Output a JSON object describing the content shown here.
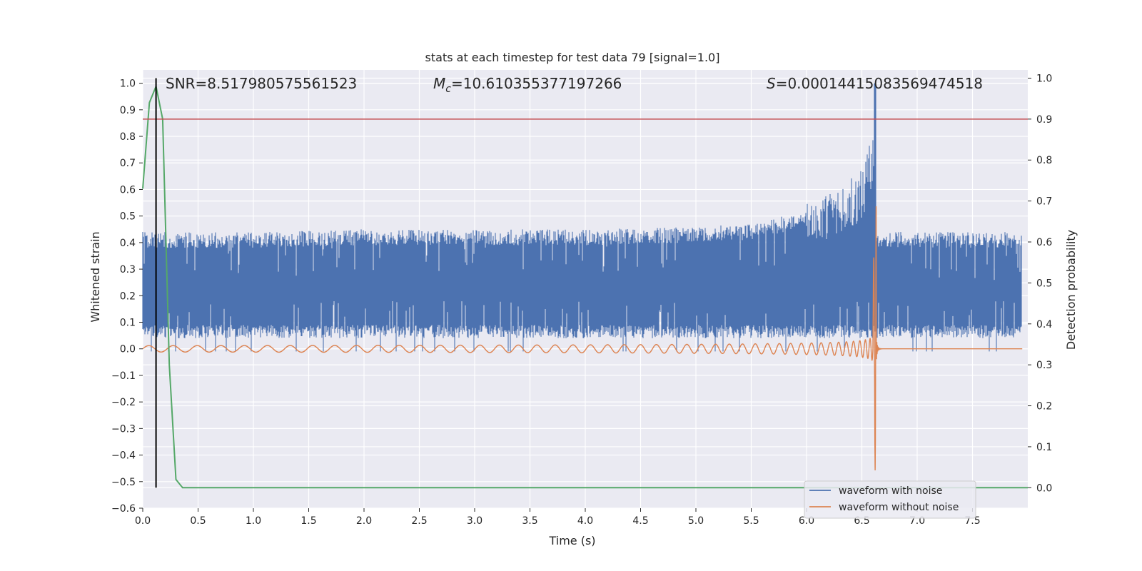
{
  "chart_data": {
    "type": "line",
    "title": "stats at each timestep for test data 79 [signal=1.0]",
    "xlabel": "Time (s)",
    "ylabel_left": "Whitened strain",
    "ylabel_right": "Detection probability",
    "xlim": [
      0.0,
      8.0
    ],
    "ylim_left": [
      -0.6,
      1.05
    ],
    "ylim_right": [
      -0.05,
      1.02
    ],
    "x_ticks": [
      "0.0",
      "0.5",
      "1.0",
      "1.5",
      "2.0",
      "2.5",
      "3.0",
      "3.5",
      "4.0",
      "4.5",
      "5.0",
      "5.5",
      "6.0",
      "6.5",
      "7.0",
      "7.5"
    ],
    "left_ticks": [
      "−0.6",
      "−0.5",
      "−0.4",
      "−0.3",
      "−0.2",
      "−0.1",
      "0.0",
      "0.1",
      "0.2",
      "0.3",
      "0.4",
      "0.5",
      "0.6",
      "0.7",
      "0.8",
      "0.9",
      "1.0"
    ],
    "right_ticks": [
      "0.0",
      "0.1",
      "0.2",
      "0.3",
      "0.4",
      "0.5",
      "0.6",
      "0.7",
      "0.8",
      "0.9",
      "1.0"
    ],
    "grid": true,
    "annotations": {
      "snr": "SNR=8.517980575561523",
      "mc_symbol": "M",
      "mc_sub": "c",
      "mc_value": "=10.610355377197266",
      "s_symbol": "S",
      "s_value": "=0.00014415083569474518"
    },
    "legend": {
      "location": "lower-right",
      "entries": [
        "waveform with noise",
        "waveform without noise"
      ]
    },
    "colors": {
      "noise": "#4c72b0",
      "clean": "#dd8452",
      "probability": "#55a868",
      "threshold": "#c44e52",
      "marker": "#000000",
      "background": "#eaeaf2",
      "grid": "#ffffff"
    },
    "series": [
      {
        "name": "waveform with noise",
        "axis": "left",
        "description_points": {
          "x": [
            0.0,
            1.0,
            2.0,
            3.0,
            4.0,
            5.0,
            5.5,
            6.0,
            6.3,
            6.5,
            6.6,
            6.62,
            6.63,
            7.0,
            8.0
          ],
          "upper": [
            0.47,
            0.47,
            0.48,
            0.48,
            0.48,
            0.49,
            0.5,
            0.55,
            0.6,
            0.68,
            0.82,
            1.0,
            0.47,
            0.47,
            0.47
          ],
          "lower": [
            0.02,
            0.02,
            0.02,
            0.02,
            0.02,
            0.02,
            0.02,
            0.02,
            0.02,
            0.02,
            0.02,
            0.02,
            0.02,
            0.02,
            0.02
          ]
        }
      },
      {
        "name": "waveform without noise",
        "axis": "left",
        "chirp": {
          "t_merger": 6.63,
          "f_start": 4.5,
          "amp_start": 0.012,
          "center": 0.0,
          "post_merger": 0.0
        }
      },
      {
        "name": "detection probability",
        "axis": "right",
        "x": [
          0.0,
          0.06,
          0.12,
          0.18,
          0.24,
          0.3,
          0.36,
          0.45,
          8.0
        ],
        "y": [
          0.73,
          0.94,
          0.98,
          0.9,
          0.3,
          0.02,
          0.0,
          0.0,
          0.0
        ]
      },
      {
        "name": "threshold",
        "axis": "right",
        "y": 0.9
      },
      {
        "name": "peak marker",
        "axis": "right",
        "x": 0.12,
        "y_range": [
          0.0,
          1.0
        ]
      }
    ]
  }
}
